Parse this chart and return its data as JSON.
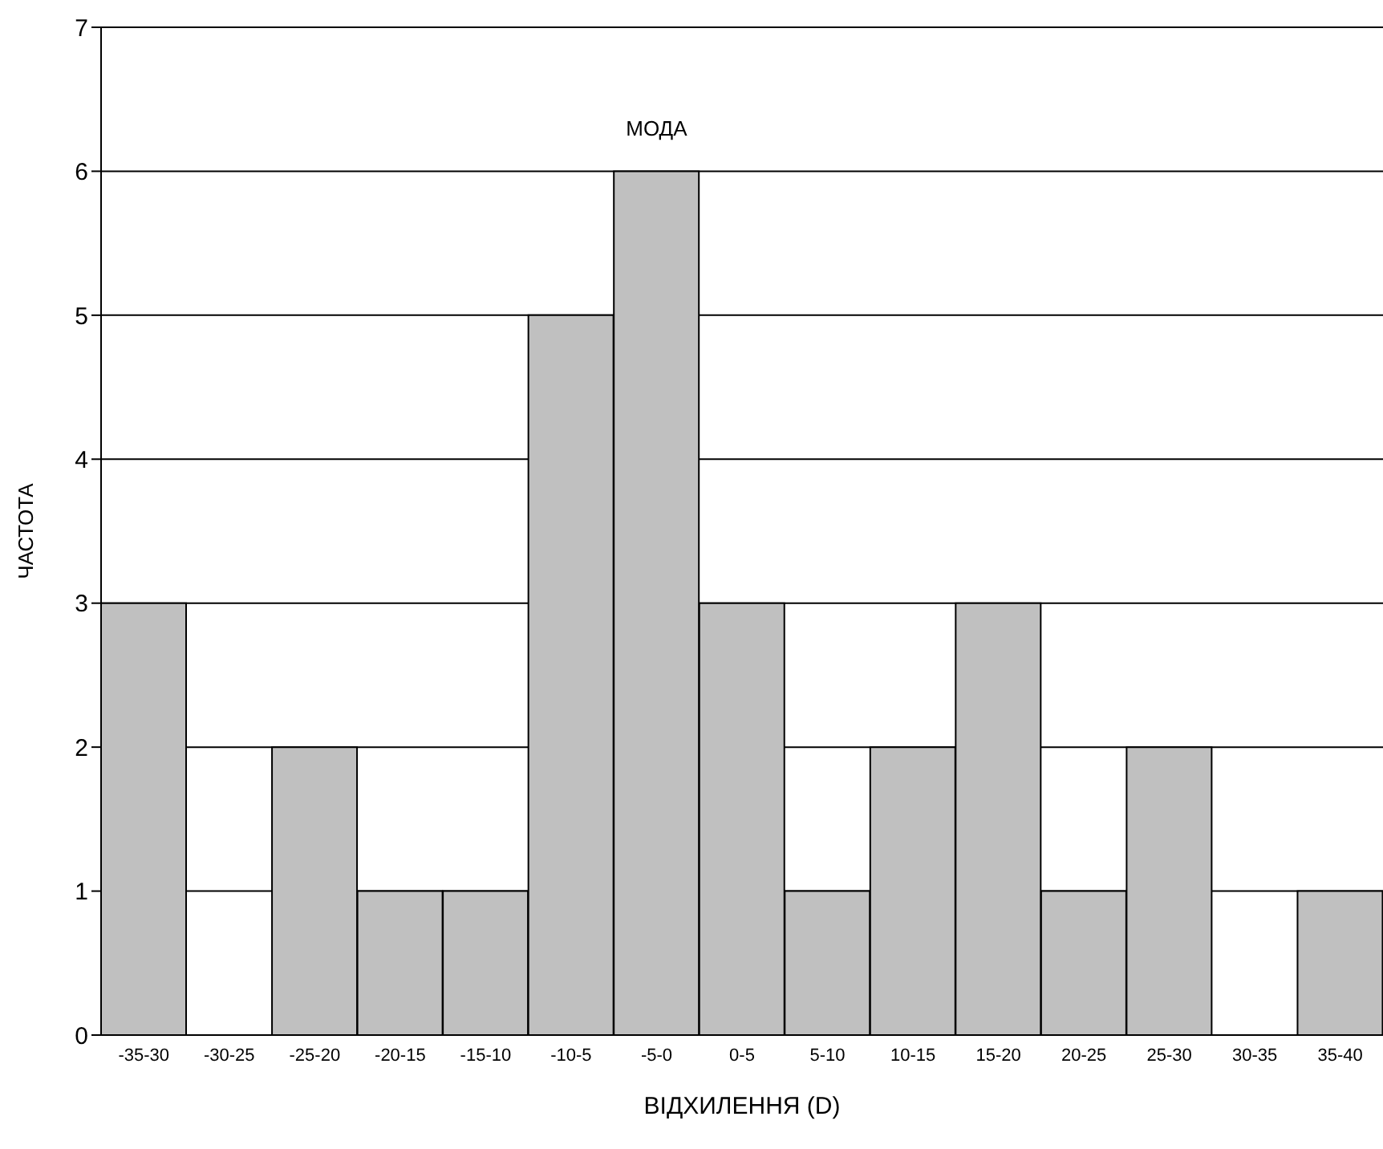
{
  "chart_data": {
    "type": "bar",
    "xlabel": "ВІДХИЛЕННЯ (D)",
    "ylabel": "ЧАСТОТА",
    "categories": [
      "-35-30",
      "-30-25",
      "-25-20",
      "-20-15",
      "-15-10",
      "-10-5",
      "-5-0",
      "0-5",
      "5-10",
      "10-15",
      "15-20",
      "20-25",
      "25-30",
      "30-35",
      "35-40"
    ],
    "values": [
      3,
      0,
      2,
      1,
      1,
      5,
      6,
      3,
      1,
      2,
      3,
      1,
      2,
      0,
      1
    ],
    "color": "#c0c0c0",
    "ylim": [
      0,
      7
    ],
    "yticks": [
      0,
      1,
      2,
      3,
      4,
      5,
      6,
      7
    ],
    "grid": "y",
    "annotations": [
      "МОДА"
    ]
  }
}
